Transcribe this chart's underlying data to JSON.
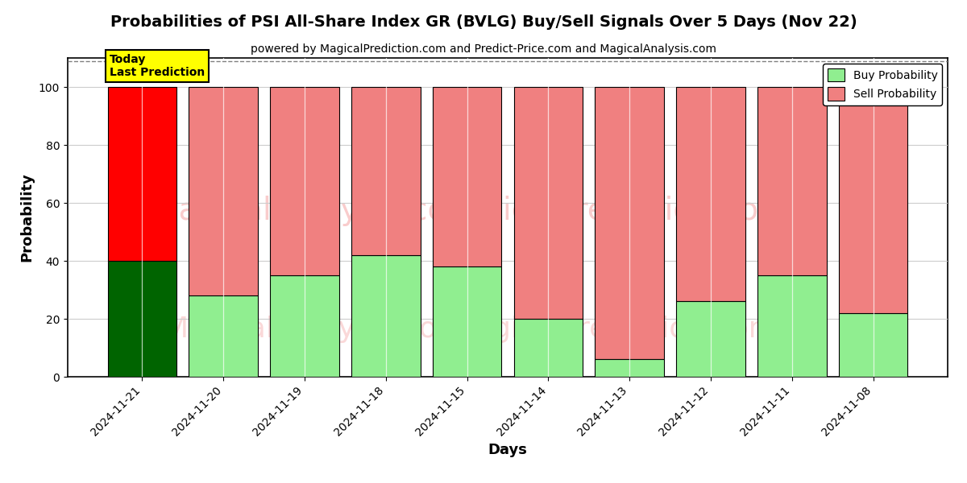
{
  "title": "Probabilities of PSI All-Share Index GR (BVLG) Buy/Sell Signals Over 5 Days (Nov 22)",
  "subtitle": "powered by MagicalPrediction.com and Predict-Price.com and MagicalAnalysis.com",
  "xlabel": "Days",
  "ylabel": "Probability",
  "categories": [
    "2024-11-21",
    "2024-11-20",
    "2024-11-19",
    "2024-11-18",
    "2024-11-15",
    "2024-11-14",
    "2024-11-13",
    "2024-11-12",
    "2024-11-11",
    "2024-11-08"
  ],
  "buy_values": [
    40,
    28,
    35,
    42,
    38,
    20,
    6,
    26,
    35,
    22
  ],
  "sell_values": [
    60,
    72,
    65,
    58,
    62,
    80,
    94,
    74,
    65,
    78
  ],
  "today_buy_color": "#006400",
  "today_sell_color": "#FF0000",
  "other_buy_color": "#90EE90",
  "other_sell_color": "#F08080",
  "today_label_bg": "#FFFF00",
  "today_label_text": "Today\nLast Prediction",
  "legend_buy_label": "Buy Probability",
  "legend_sell_label": "Sell Probability",
  "ylim": [
    0,
    110
  ],
  "dashed_line_y": 109,
  "watermark1": "MagicalAnalysis.com",
  "watermark2": "MagicalPrediction.com",
  "bar_edge_color": "#000000",
  "grid_color": "#AAAAAA",
  "bg_color": "#FFFFFF",
  "plot_bg_color": "#FFFFFF"
}
